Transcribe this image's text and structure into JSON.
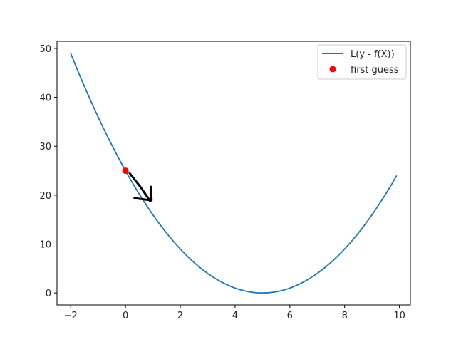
{
  "chart_data": {
    "type": "line",
    "title": "",
    "xlabel": "",
    "ylabel": "",
    "xlim": [
      -2.5,
      10.4
    ],
    "ylim": [
      -2.45,
      51.45
    ],
    "x_ticks": [
      -2,
      0,
      2,
      4,
      6,
      8,
      10
    ],
    "y_ticks": [
      0,
      10,
      20,
      30,
      40,
      50
    ],
    "x_tick_labels": [
      "−2",
      "0",
      "2",
      "4",
      "6",
      "8",
      "10"
    ],
    "y_tick_labels": [
      "0",
      "10",
      "20",
      "30",
      "40",
      "50"
    ],
    "grid": false,
    "legend_position": "top-right",
    "series": [
      {
        "name": "L(y - f(X))",
        "kind": "line",
        "color": "#1f77b4",
        "function": "(x - 5)^2",
        "x_range": [
          -2,
          9.9
        ],
        "x": [
          -2,
          -1,
          0,
          1,
          2,
          3,
          4,
          5,
          6,
          7,
          8,
          9,
          9.9
        ],
        "y": [
          49,
          36,
          25,
          16,
          9,
          4,
          1,
          0,
          1,
          4,
          9,
          16,
          24.01
        ]
      },
      {
        "name": "first guess",
        "kind": "scatter",
        "color": "#ff0000",
        "x": [
          0
        ],
        "y": [
          25
        ]
      }
    ],
    "annotations": [
      {
        "type": "hand-drawn-arrow",
        "color": "#000000",
        "from": [
          0.15,
          24.5
        ],
        "to": [
          0.9,
          18.8
        ]
      }
    ]
  }
}
